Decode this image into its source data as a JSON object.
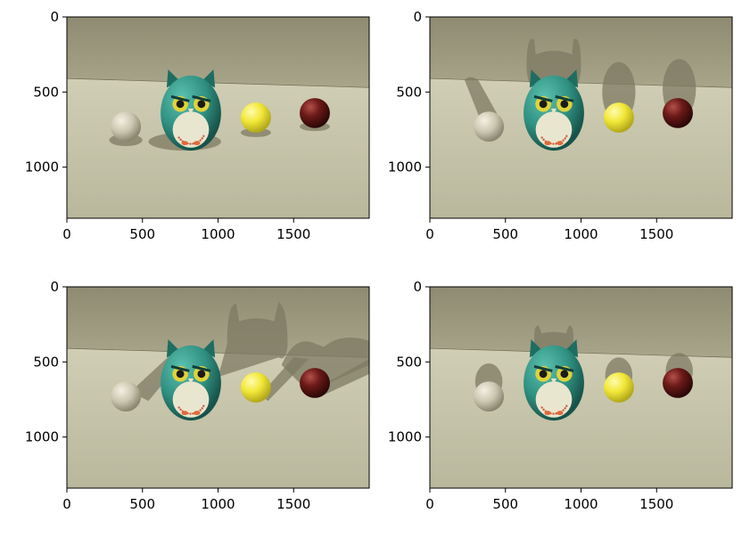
{
  "figure": {
    "panels": [
      {
        "id": "top-left",
        "lighting": "spotlight from front, shadows falling directly behind objects",
        "x_ticks": [
          "0",
          "500",
          "1000",
          "1500"
        ],
        "y_ticks": [
          "0",
          "500",
          "1000"
        ],
        "x_range": [
          0,
          2000
        ],
        "y_range": [
          1340,
          0
        ]
      },
      {
        "id": "top-right",
        "lighting": "light from lower front, large shadows cast upward onto back wall",
        "x_ticks": [
          "0",
          "500",
          "1000",
          "1500"
        ],
        "y_ticks": [
          "0",
          "500",
          "1000"
        ],
        "x_range": [
          0,
          2000
        ],
        "y_range": [
          1340,
          0
        ]
      },
      {
        "id": "bottom-left",
        "lighting": "light from the left, shadows cast diagonally to the right",
        "x_ticks": [
          "0",
          "500",
          "1000",
          "1500"
        ],
        "y_ticks": [
          "0",
          "500",
          "1000"
        ],
        "x_range": [
          0,
          2000
        ],
        "y_range": [
          1340,
          0
        ]
      },
      {
        "id": "bottom-right",
        "lighting": "soft front light, faint shadows behind objects",
        "x_ticks": [
          "0",
          "500",
          "1000",
          "1500"
        ],
        "y_ticks": [
          "0",
          "500",
          "1000"
        ],
        "x_range": [
          0,
          2000
        ],
        "y_range": [
          1340,
          0
        ]
      }
    ],
    "colors": {
      "wall": "#a9a58a",
      "floor": "#cfcdb4",
      "owl_body": "#2f8f80",
      "owl_belly": "#e9e6cf",
      "ball_grey": "#cbc6b0",
      "ball_yellow": "#f2e838",
      "ball_maroon": "#6b1a18",
      "shadow": "#7d7963"
    },
    "objects": [
      "grey ball",
      "owl figurine",
      "yellow ball",
      "maroon ball"
    ]
  }
}
